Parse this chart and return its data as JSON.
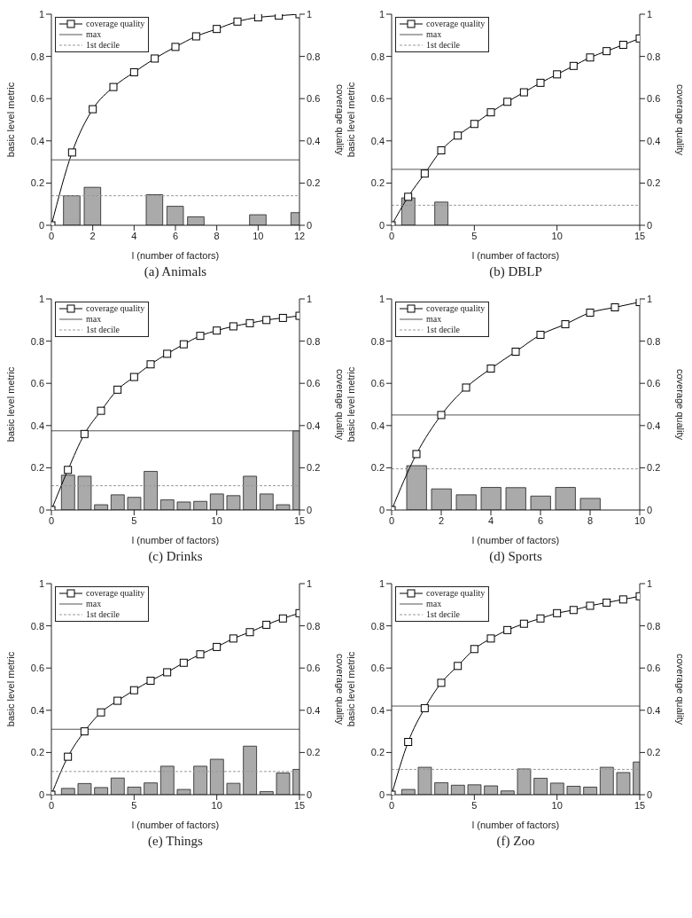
{
  "chart_data": [
    {
      "type": "bar",
      "title": "(a) Animals",
      "xlabel": "l (number of factors)",
      "ylabel": "basic level metric",
      "y2label": "coverage quality",
      "x": [
        0,
        1,
        2,
        3,
        4,
        5,
        6,
        7,
        8,
        9,
        10,
        11,
        12
      ],
      "series": [
        {
          "color": "#aaaaaa",
          "values": [
            0,
            0.14,
            0.18,
            0,
            0,
            0.145,
            0.09,
            0.04,
            0,
            0,
            0.05,
            0,
            0.06
          ]
        },
        {
          "type": "line",
          "name": "coverage quality",
          "color": "#000000",
          "axis": "y2",
          "marker": "square",
          "values": [
            0,
            0.345,
            0.55,
            0.655,
            0.725,
            0.79,
            0.845,
            0.895,
            0.93,
            0.965,
            0.985,
            0.993,
            1.0
          ]
        }
      ],
      "xlim": [
        0,
        12
      ],
      "xticks": [
        0,
        2,
        4,
        6,
        8,
        10,
        12
      ],
      "ylim": [
        0,
        1
      ],
      "yticks": [
        0,
        0.2,
        0.4,
        0.6,
        0.8,
        1
      ],
      "y2lim": [
        0,
        1
      ],
      "y2ticks": [
        0,
        0.2,
        0.4,
        0.6,
        0.8,
        1
      ],
      "ref_lines": [
        {
          "axis": "y",
          "value": 0.31,
          "label": "max",
          "color": "#555555",
          "line_style": "solid"
        },
        {
          "axis": "y",
          "value": 0.14,
          "label": "1st decile",
          "color": "#999999",
          "line_style": "dashed"
        }
      ],
      "legend": "top left"
    },
    {
      "type": "bar",
      "title": "(b) DBLP",
      "xlabel": "l (number of factors)",
      "ylabel": "basic level metric",
      "y2label": "coverage quality",
      "x": [
        0,
        1,
        2,
        3,
        4,
        5,
        6,
        7,
        8,
        9,
        10,
        11,
        12,
        13,
        14,
        15
      ],
      "series": [
        {
          "color": "#aaaaaa",
          "values": [
            0,
            0.13,
            0,
            0.11,
            0,
            0,
            0,
            0,
            0,
            0,
            0,
            0,
            0,
            0,
            0,
            0
          ]
        },
        {
          "type": "line",
          "name": "coverage quality",
          "color": "#000000",
          "axis": "y2",
          "marker": "square",
          "values": [
            0,
            0.135,
            0.245,
            0.355,
            0.425,
            0.48,
            0.535,
            0.585,
            0.63,
            0.675,
            0.715,
            0.755,
            0.795,
            0.825,
            0.855,
            0.885
          ]
        }
      ],
      "xlim": [
        0,
        15
      ],
      "xticks": [
        0,
        5,
        10,
        15
      ],
      "ylim": [
        0,
        1
      ],
      "yticks": [
        0,
        0.2,
        0.4,
        0.6,
        0.8,
        1
      ],
      "y2lim": [
        0,
        1
      ],
      "y2ticks": [
        0,
        0.2,
        0.4,
        0.6,
        0.8,
        1
      ],
      "ref_lines": [
        {
          "axis": "y",
          "value": 0.265,
          "label": "max",
          "color": "#555555",
          "line_style": "solid"
        },
        {
          "axis": "y",
          "value": 0.095,
          "label": "1st decile",
          "color": "#999999",
          "line_style": "dashed"
        }
      ],
      "legend": "top left"
    },
    {
      "type": "bar",
      "title": "(c) Drinks",
      "xlabel": "l (number of factors)",
      "ylabel": "basic level metric",
      "y2label": "coverage quality",
      "x": [
        0,
        1,
        2,
        3,
        4,
        5,
        6,
        7,
        8,
        9,
        10,
        11,
        12,
        13,
        14,
        15
      ],
      "series": [
        {
          "color": "#aaaaaa",
          "values": [
            0,
            0.165,
            0.16,
            0.025,
            0.072,
            0.06,
            0.183,
            0.048,
            0.038,
            0.041,
            0.076,
            0.068,
            0.16,
            0.076,
            0.025,
            0.375
          ]
        },
        {
          "type": "line",
          "name": "coverage quality",
          "color": "#000000",
          "axis": "y2",
          "marker": "square",
          "values": [
            0,
            0.19,
            0.36,
            0.47,
            0.57,
            0.63,
            0.69,
            0.74,
            0.785,
            0.825,
            0.85,
            0.87,
            0.885,
            0.9,
            0.91,
            0.92
          ]
        }
      ],
      "xlim": [
        0,
        15
      ],
      "xticks": [
        0,
        5,
        10,
        15
      ],
      "ylim": [
        0,
        1
      ],
      "yticks": [
        0,
        0.2,
        0.4,
        0.6,
        0.8,
        1
      ],
      "y2lim": [
        0,
        1
      ],
      "y2ticks": [
        0,
        0.2,
        0.4,
        0.6,
        0.8,
        1
      ],
      "ref_lines": [
        {
          "axis": "y",
          "value": 0.375,
          "label": "max",
          "color": "#555555",
          "line_style": "solid"
        },
        {
          "axis": "y",
          "value": 0.115,
          "label": "1st decile",
          "color": "#999999",
          "line_style": "dashed"
        }
      ],
      "legend": "top left"
    },
    {
      "type": "bar",
      "title": "(d) Sports",
      "xlabel": "l (number of factors)",
      "ylabel": "basic level metric",
      "y2label": "coverage quality",
      "x": [
        0,
        1,
        2,
        3,
        4,
        5,
        6,
        7,
        8,
        9,
        10
      ],
      "series": [
        {
          "color": "#aaaaaa",
          "values": [
            0,
            0.21,
            0.1,
            0.072,
            0.107,
            0.106,
            0.066,
            0.107,
            0.055,
            0,
            0
          ]
        },
        {
          "type": "line",
          "name": "coverage quality",
          "color": "#000000",
          "axis": "y2",
          "marker": "square",
          "values": [
            0,
            0.265,
            0.45,
            0.58,
            0.67,
            0.75,
            0.83,
            0.88,
            0.935,
            0.96,
            0.985
          ]
        }
      ],
      "xlim": [
        0,
        10
      ],
      "xticks": [
        0,
        2,
        4,
        6,
        8,
        10
      ],
      "ylim": [
        0,
        1
      ],
      "yticks": [
        0,
        0.2,
        0.4,
        0.6,
        0.8,
        1
      ],
      "y2lim": [
        0,
        1
      ],
      "y2ticks": [
        0,
        0.2,
        0.4,
        0.6,
        0.8,
        1
      ],
      "ref_lines": [
        {
          "axis": "y",
          "value": 0.45,
          "label": "max",
          "color": "#555555",
          "line_style": "solid"
        },
        {
          "axis": "y",
          "value": 0.195,
          "label": "1st decile",
          "color": "#999999",
          "line_style": "dashed"
        }
      ],
      "legend": "top left"
    },
    {
      "type": "bar",
      "title": "(e) Things",
      "xlabel": "l (number of factors)",
      "ylabel": "basic level metric",
      "y2label": "coverage quality",
      "x": [
        0,
        1,
        2,
        3,
        4,
        5,
        6,
        7,
        8,
        9,
        10,
        11,
        12,
        13,
        14,
        15
      ],
      "series": [
        {
          "color": "#aaaaaa",
          "values": [
            0,
            0.03,
            0.053,
            0.034,
            0.079,
            0.036,
            0.056,
            0.135,
            0.025,
            0.135,
            0.168,
            0.054,
            0.23,
            0.015,
            0.103,
            0.12
          ]
        },
        {
          "type": "line",
          "name": "coverage quality",
          "color": "#000000",
          "axis": "y2",
          "marker": "square",
          "values": [
            0,
            0.18,
            0.3,
            0.39,
            0.445,
            0.495,
            0.54,
            0.58,
            0.625,
            0.665,
            0.7,
            0.74,
            0.77,
            0.805,
            0.835,
            0.86
          ]
        }
      ],
      "xlim": [
        0,
        15
      ],
      "xticks": [
        0,
        5,
        10,
        15
      ],
      "ylim": [
        0,
        1
      ],
      "yticks": [
        0,
        0.2,
        0.4,
        0.6,
        0.8,
        1
      ],
      "y2lim": [
        0,
        1
      ],
      "y2ticks": [
        0,
        0.2,
        0.4,
        0.6,
        0.8,
        1
      ],
      "ref_lines": [
        {
          "axis": "y",
          "value": 0.31,
          "label": "max",
          "color": "#555555",
          "line_style": "solid"
        },
        {
          "axis": "y",
          "value": 0.11,
          "label": "1st decile",
          "color": "#999999",
          "line_style": "dashed"
        }
      ],
      "legend": "top left"
    },
    {
      "type": "bar",
      "title": "(f) Zoo",
      "xlabel": "l (number of factors)",
      "ylabel": "basic level metric",
      "y2label": "coverage quality",
      "x": [
        0,
        1,
        2,
        3,
        4,
        5,
        6,
        7,
        8,
        9,
        10,
        11,
        12,
        13,
        14,
        15
      ],
      "series": [
        {
          "color": "#aaaaaa",
          "values": [
            0,
            0.025,
            0.13,
            0.057,
            0.045,
            0.047,
            0.042,
            0.018,
            0.122,
            0.078,
            0.055,
            0.04,
            0.036,
            0.13,
            0.105,
            0.155
          ]
        },
        {
          "type": "line",
          "name": "coverage quality",
          "color": "#000000",
          "axis": "y2",
          "marker": "square",
          "values": [
            0,
            0.25,
            0.41,
            0.53,
            0.61,
            0.69,
            0.74,
            0.78,
            0.81,
            0.835,
            0.86,
            0.875,
            0.895,
            0.91,
            0.925,
            0.94
          ]
        }
      ],
      "xlim": [
        0,
        15
      ],
      "xticks": [
        0,
        5,
        10,
        15
      ],
      "ylim": [
        0,
        1
      ],
      "yticks": [
        0,
        0.2,
        0.4,
        0.6,
        0.8,
        1
      ],
      "y2lim": [
        0,
        1
      ],
      "y2ticks": [
        0,
        0.2,
        0.4,
        0.6,
        0.8,
        1
      ],
      "ref_lines": [
        {
          "axis": "y",
          "value": 0.42,
          "label": "max",
          "color": "#555555",
          "line_style": "solid"
        },
        {
          "axis": "y",
          "value": 0.12,
          "label": "1st decile",
          "color": "#999999",
          "line_style": "dashed"
        }
      ],
      "legend": "top left"
    }
  ]
}
